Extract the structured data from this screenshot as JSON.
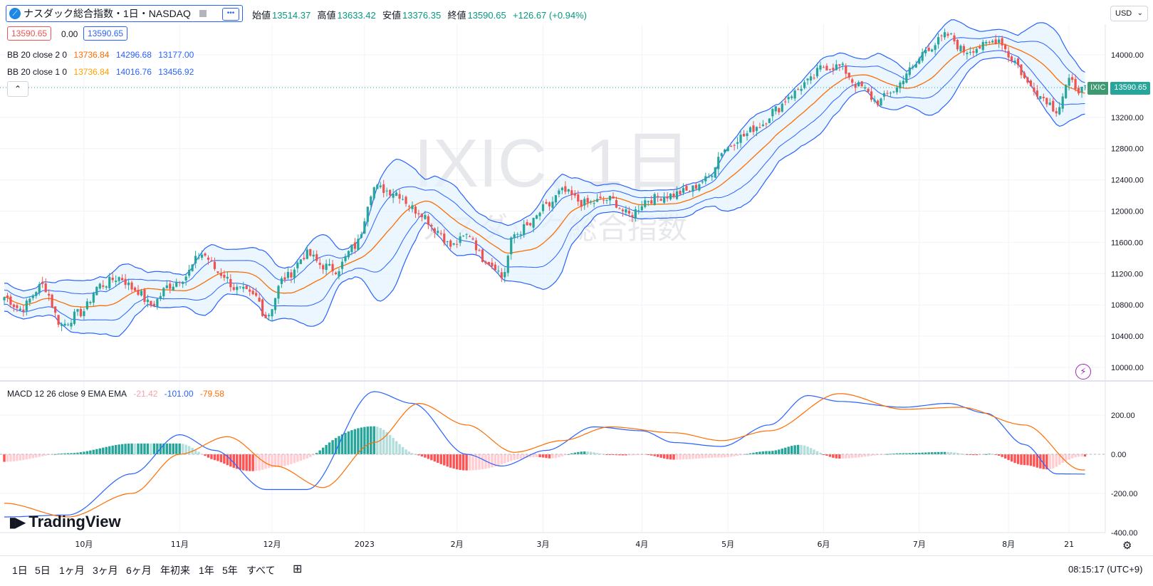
{
  "header": {
    "symbol_title": "ナスダック総合指数・1日・NASDAQ",
    "ohlc": {
      "open_label": "始値",
      "open": "13514.37",
      "high_label": "高値",
      "high": "13633.42",
      "low_label": "安値",
      "low": "13376.35",
      "close_label": "終値",
      "close": "13590.65",
      "change": "+126.67 (+0.94%)"
    },
    "bid": "13590.65",
    "spread": "0.00",
    "ask": "13590.65",
    "currency": "USD"
  },
  "watermark": {
    "line1": "IXIC, 1日",
    "line2": "ナスダック総合指数"
  },
  "indicators": {
    "bb2": {
      "label": "BB 20 close 2 0",
      "basis": "13736.84",
      "upper": "14296.68",
      "lower": "13177.00"
    },
    "bb1": {
      "label": "BB 20 close 1 0",
      "basis": "13736.84",
      "upper": "14016.76",
      "lower": "13456.92"
    },
    "macd": {
      "label": "MACD 12 26 close 9 EMA EMA",
      "hist": "-21.42",
      "macd": "-101.00",
      "signal": "-79.58"
    }
  },
  "price_tag": {
    "symbol": "IXIC",
    "value": "13590.65"
  },
  "colors": {
    "up": "#26a69a",
    "down": "#ef5350",
    "bb_outer": "#2962ff",
    "basis": "#ff6d00",
    "macd_line": "#2962ff",
    "signal_line": "#ff6d00",
    "bb_fill": "#e3f2fd"
  },
  "time_axis": [
    "10月",
    "11月",
    "12月",
    "2023",
    "2月",
    "3月",
    "4月",
    "5月",
    "6月",
    "7月",
    "8月",
    "21"
  ],
  "ranges": [
    "1日",
    "5日",
    "1ヶ月",
    "3ヶ月",
    "6ヶ月",
    "年初来",
    "1年",
    "5年",
    "すべて"
  ],
  "clock": "08:15:17 (UTC+9)",
  "brand": "TradingView",
  "chart_data": [
    {
      "type": "candlestick",
      "title": "",
      "ylim": [
        10000,
        14400
      ],
      "yticks": [
        10000,
        10400,
        10800,
        11200,
        11600,
        12000,
        12400,
        12800,
        13200,
        13600,
        14000
      ],
      "ytick_labels": [
        "10000.00",
        "10400.00",
        "10800.00",
        "11200.00",
        "11600.00",
        "12000.00",
        "12400.00",
        "12800.00",
        "13200.00",
        "",
        "14000.00"
      ],
      "anchors_close": [
        [
          0,
          10900
        ],
        [
          5,
          10750
        ],
        [
          12,
          11050
        ],
        [
          18,
          10550
        ],
        [
          24,
          10700
        ],
        [
          30,
          11050
        ],
        [
          36,
          11150
        ],
        [
          41,
          11000
        ],
        [
          46,
          10800
        ],
        [
          52,
          11050
        ],
        [
          56,
          11150
        ],
        [
          62,
          11450
        ],
        [
          68,
          11200
        ],
        [
          73,
          11000
        ],
        [
          79,
          10900
        ],
        [
          82,
          10650
        ],
        [
          88,
          11150
        ],
        [
          95,
          11450
        ],
        [
          100,
          11300
        ],
        [
          104,
          11250
        ],
        [
          110,
          11550
        ],
        [
          116,
          12300
        ],
        [
          122,
          12250
        ],
        [
          130,
          12000
        ],
        [
          136,
          11750
        ],
        [
          140,
          11550
        ],
        [
          146,
          11700
        ],
        [
          150,
          11400
        ],
        [
          154,
          11300
        ],
        [
          156,
          11150
        ],
        [
          160,
          11700
        ],
        [
          164,
          11800
        ],
        [
          170,
          12050
        ],
        [
          175,
          12250
        ],
        [
          182,
          12100
        ],
        [
          190,
          12150
        ],
        [
          196,
          11950
        ],
        [
          202,
          12150
        ],
        [
          208,
          12200
        ],
        [
          214,
          12250
        ],
        [
          220,
          12400
        ],
        [
          226,
          12800
        ],
        [
          231,
          12950
        ],
        [
          237,
          13100
        ],
        [
          242,
          13300
        ],
        [
          247,
          13500
        ],
        [
          252,
          13650
        ],
        [
          257,
          13850
        ],
        [
          262,
          13850
        ],
        [
          268,
          13600
        ],
        [
          274,
          13400
        ],
        [
          279,
          13550
        ],
        [
          284,
          13800
        ],
        [
          290,
          14100
        ],
        [
          296,
          14250
        ],
        [
          301,
          14050
        ],
        [
          306,
          14100
        ],
        [
          312,
          14200
        ],
        [
          316,
          13950
        ],
        [
          322,
          13600
        ],
        [
          326,
          13450
        ],
        [
          330,
          13300
        ],
        [
          334,
          13650
        ],
        [
          338,
          13550
        ]
      ]
    },
    {
      "type": "bar+line",
      "title": "",
      "ylim": [
        -400,
        400
      ],
      "yticks": [
        -400,
        -200,
        0,
        200
      ],
      "ytick_labels": [
        "-400.00",
        "-200.00",
        "0.00",
        "200.00"
      ],
      "series": [
        {
          "name": "",
          "anchors": [
            [
              0,
              -320
            ],
            [
              20,
              -310
            ],
            [
              40,
              -100
            ],
            [
              55,
              100
            ],
            [
              66,
              20
            ],
            [
              82,
              -180
            ],
            [
              95,
              -180
            ],
            [
              116,
              320
            ],
            [
              128,
              260
            ],
            [
              145,
              0
            ],
            [
              156,
              -60
            ],
            [
              170,
              20
            ],
            [
              185,
              140
            ],
            [
              200,
              120
            ],
            [
              210,
              60
            ],
            [
              225,
              40
            ],
            [
              240,
              150
            ],
            [
              252,
              300
            ],
            [
              262,
              270
            ],
            [
              282,
              240
            ],
            [
              296,
              260
            ],
            [
              308,
              210
            ],
            [
              320,
              50
            ],
            [
              330,
              -100
            ],
            [
              338,
              -101
            ]
          ]
        },
        {
          "name": "",
          "anchors": [
            [
              0,
              -250
            ],
            [
              20,
              -320
            ],
            [
              40,
              -200
            ],
            [
              55,
              0
            ],
            [
              70,
              90
            ],
            [
              85,
              -60
            ],
            [
              100,
              -170
            ],
            [
              116,
              60
            ],
            [
              130,
              260
            ],
            [
              145,
              150
            ],
            [
              160,
              10
            ],
            [
              175,
              70
            ],
            [
              190,
              140
            ],
            [
              210,
              110
            ],
            [
              225,
              70
            ],
            [
              240,
              120
            ],
            [
              262,
              310
            ],
            [
              282,
              230
            ],
            [
              300,
              240
            ],
            [
              320,
              150
            ],
            [
              338,
              -80
            ]
          ]
        }
      ]
    }
  ]
}
